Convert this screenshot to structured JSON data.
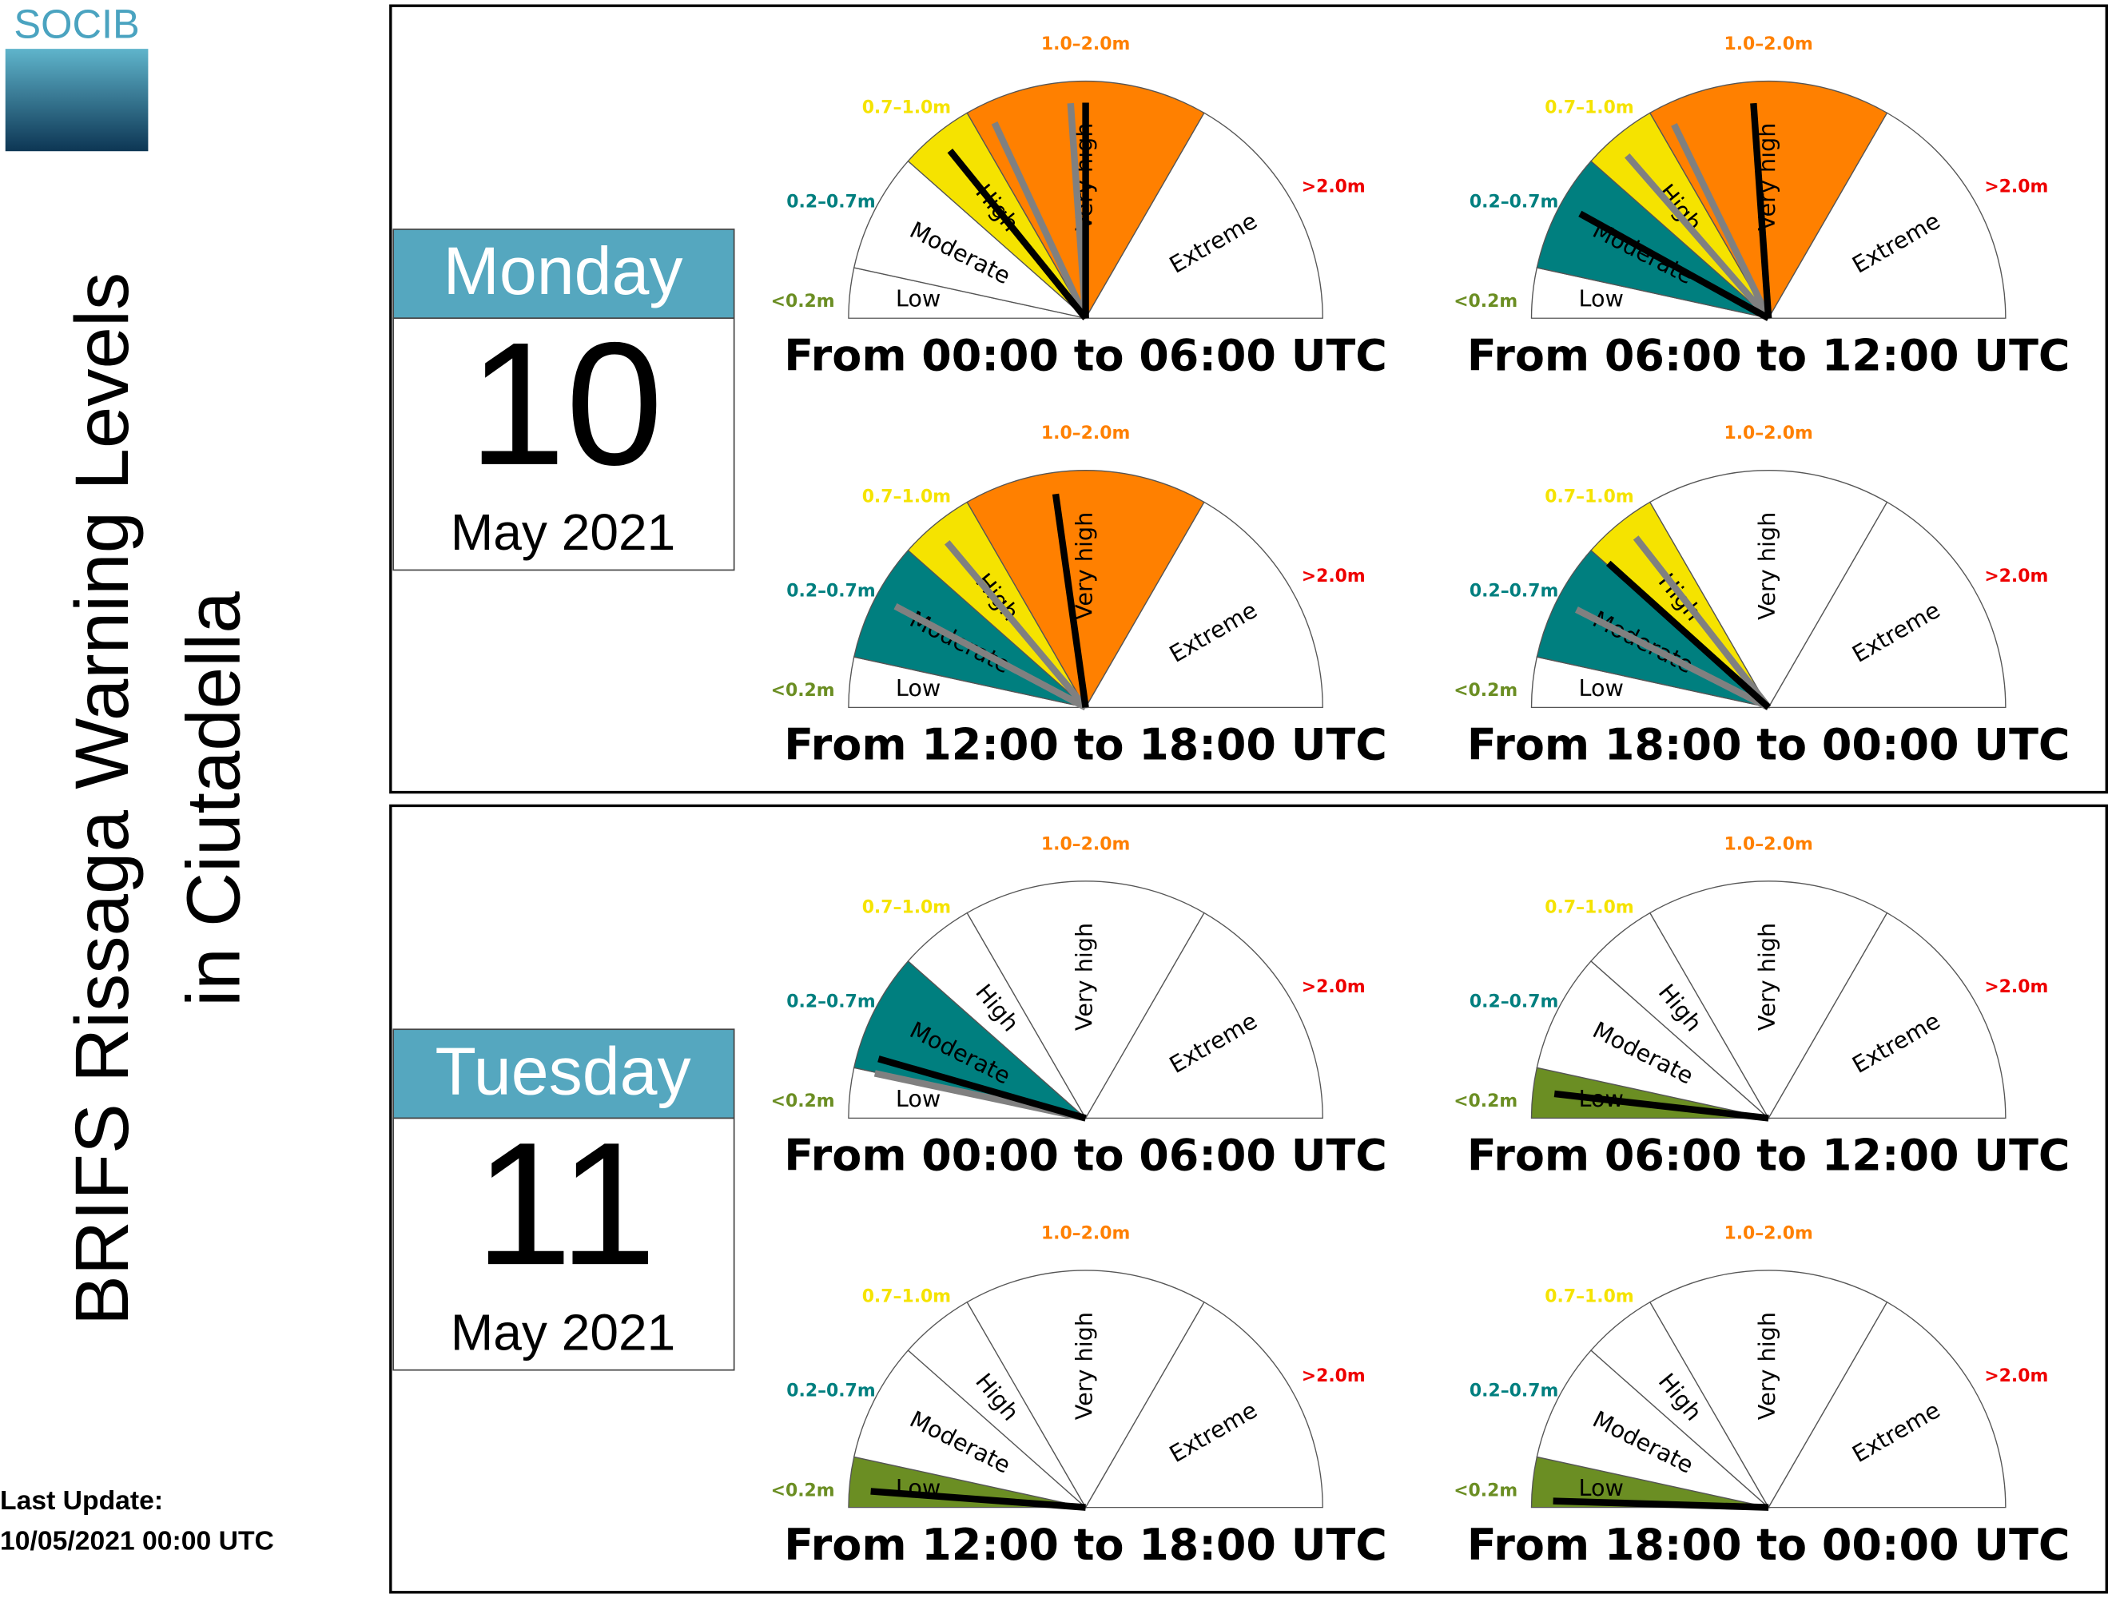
{
  "logo": "SOCIB",
  "title": [
    "BRIFS Rissaga Warning Levels",
    "in Ciutadella"
  ],
  "last_update": [
    "Last Update:",
    "10/05/2021 00:00 UTC"
  ],
  "gauge": {
    "sector_angles": [
      0,
      12.3,
      41.5,
      60,
      120,
      180
    ],
    "sectors": [
      {
        "name": "Low",
        "range": "<0.2m",
        "color": "#6b8e23"
      },
      {
        "name": "Moderate",
        "range": "0.2–0.7m",
        "color": "#007f7f"
      },
      {
        "name": "High",
        "range": "0.7–1.0m",
        "color": "#f5e300"
      },
      {
        "name": "Very high",
        "range": "1.0–2.0m",
        "color": "#ff8000"
      },
      {
        "name": "Extreme",
        "range": ">2.0m",
        "color": "#ee0000"
      }
    ]
  },
  "days": [
    {
      "weekday": "Monday",
      "day": "10",
      "month": "May 2021",
      "panels": [
        {
          "label": "From 00:00 to 06:00 UTC",
          "filled": [
            2,
            3
          ],
          "needles": [
            {
              "color": "#808080",
              "angle": 65
            },
            {
              "color": "#808080",
              "angle": 86
            },
            {
              "color": "#000000",
              "angle": 51
            },
            {
              "color": "#000000",
              "angle": 90
            }
          ]
        },
        {
          "label": "From 06:00 to 12:00 UTC",
          "filled": [
            1,
            2,
            3
          ],
          "needles": [
            {
              "color": "#808080",
              "angle": 49
            },
            {
              "color": "#808080",
              "angle": 64
            },
            {
              "color": "#000000",
              "angle": 29
            },
            {
              "color": "#000000",
              "angle": 86
            }
          ]
        },
        {
          "label": "From 12:00 to 18:00 UTC",
          "filled": [
            1,
            2,
            3
          ],
          "needles": [
            {
              "color": "#808080",
              "angle": 28
            },
            {
              "color": "#808080",
              "angle": 50
            },
            {
              "color": "#000000",
              "angle": 82
            }
          ]
        },
        {
          "label": "From 18:00 to 00:00 UTC",
          "filled": [
            1,
            2
          ],
          "needles": [
            {
              "color": "#808080",
              "angle": 27
            },
            {
              "color": "#808080",
              "angle": 52
            },
            {
              "color": "#000000",
              "angle": 42
            }
          ]
        }
      ]
    },
    {
      "weekday": "Tuesday",
      "day": "11",
      "month": "May 2021",
      "panels": [
        {
          "label": "From 00:00 to 06:00 UTC",
          "filled": [
            1
          ],
          "needles": [
            {
              "color": "#808080",
              "angle": 12
            },
            {
              "color": "#000000",
              "angle": 16
            }
          ]
        },
        {
          "label": "From 06:00 to 12:00 UTC",
          "filled": [
            0
          ],
          "needles": [
            {
              "color": "#000000",
              "angle": 6.5
            }
          ]
        },
        {
          "label": "From 12:00 to 18:00 UTC",
          "filled": [
            0
          ],
          "needles": [
            {
              "color": "#000000",
              "angle": 4.3
            }
          ]
        },
        {
          "label": "From 18:00 to 00:00 UTC",
          "filled": [
            0
          ],
          "needles": [
            {
              "color": "#000000",
              "angle": 1.7
            }
          ]
        }
      ]
    }
  ]
}
